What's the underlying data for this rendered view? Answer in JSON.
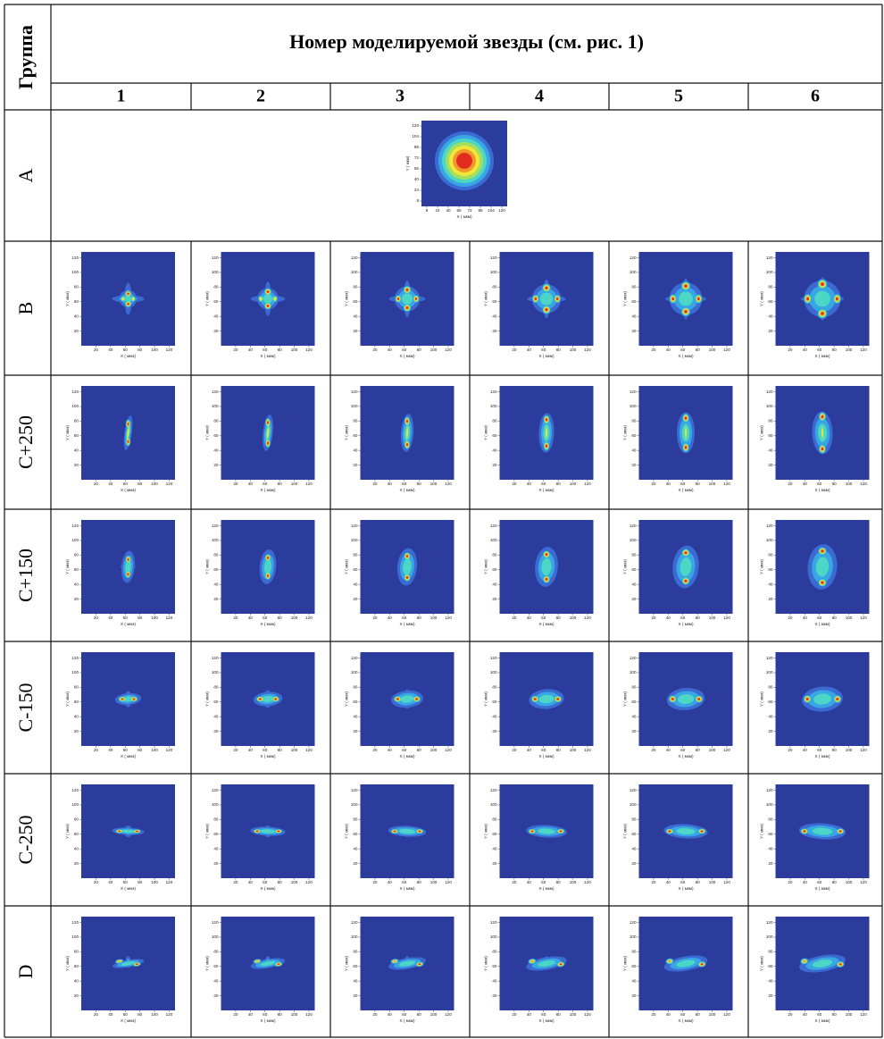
{
  "header": {
    "group_label": "Группа",
    "title": "Номер моделируемой звезды (см. рис. 1)",
    "columns": [
      "1",
      "2",
      "3",
      "4",
      "5",
      "6"
    ]
  },
  "rows": [
    {
      "group": "A"
    },
    {
      "group": "B"
    },
    {
      "group": "C+250"
    },
    {
      "group": "C+150"
    },
    {
      "group": "C-150"
    },
    {
      "group": "C-250"
    },
    {
      "group": "D"
    }
  ],
  "plot_axes": {
    "ticks": [
      20,
      40,
      60,
      80,
      100,
      120
    ],
    "x_label": "X ( мкм)",
    "y_label": "Y ( мкм)"
  },
  "plot_axes_a": {
    "ticks": [
      8,
      24,
      40,
      56,
      72,
      88,
      104,
      120
    ]
  }
}
